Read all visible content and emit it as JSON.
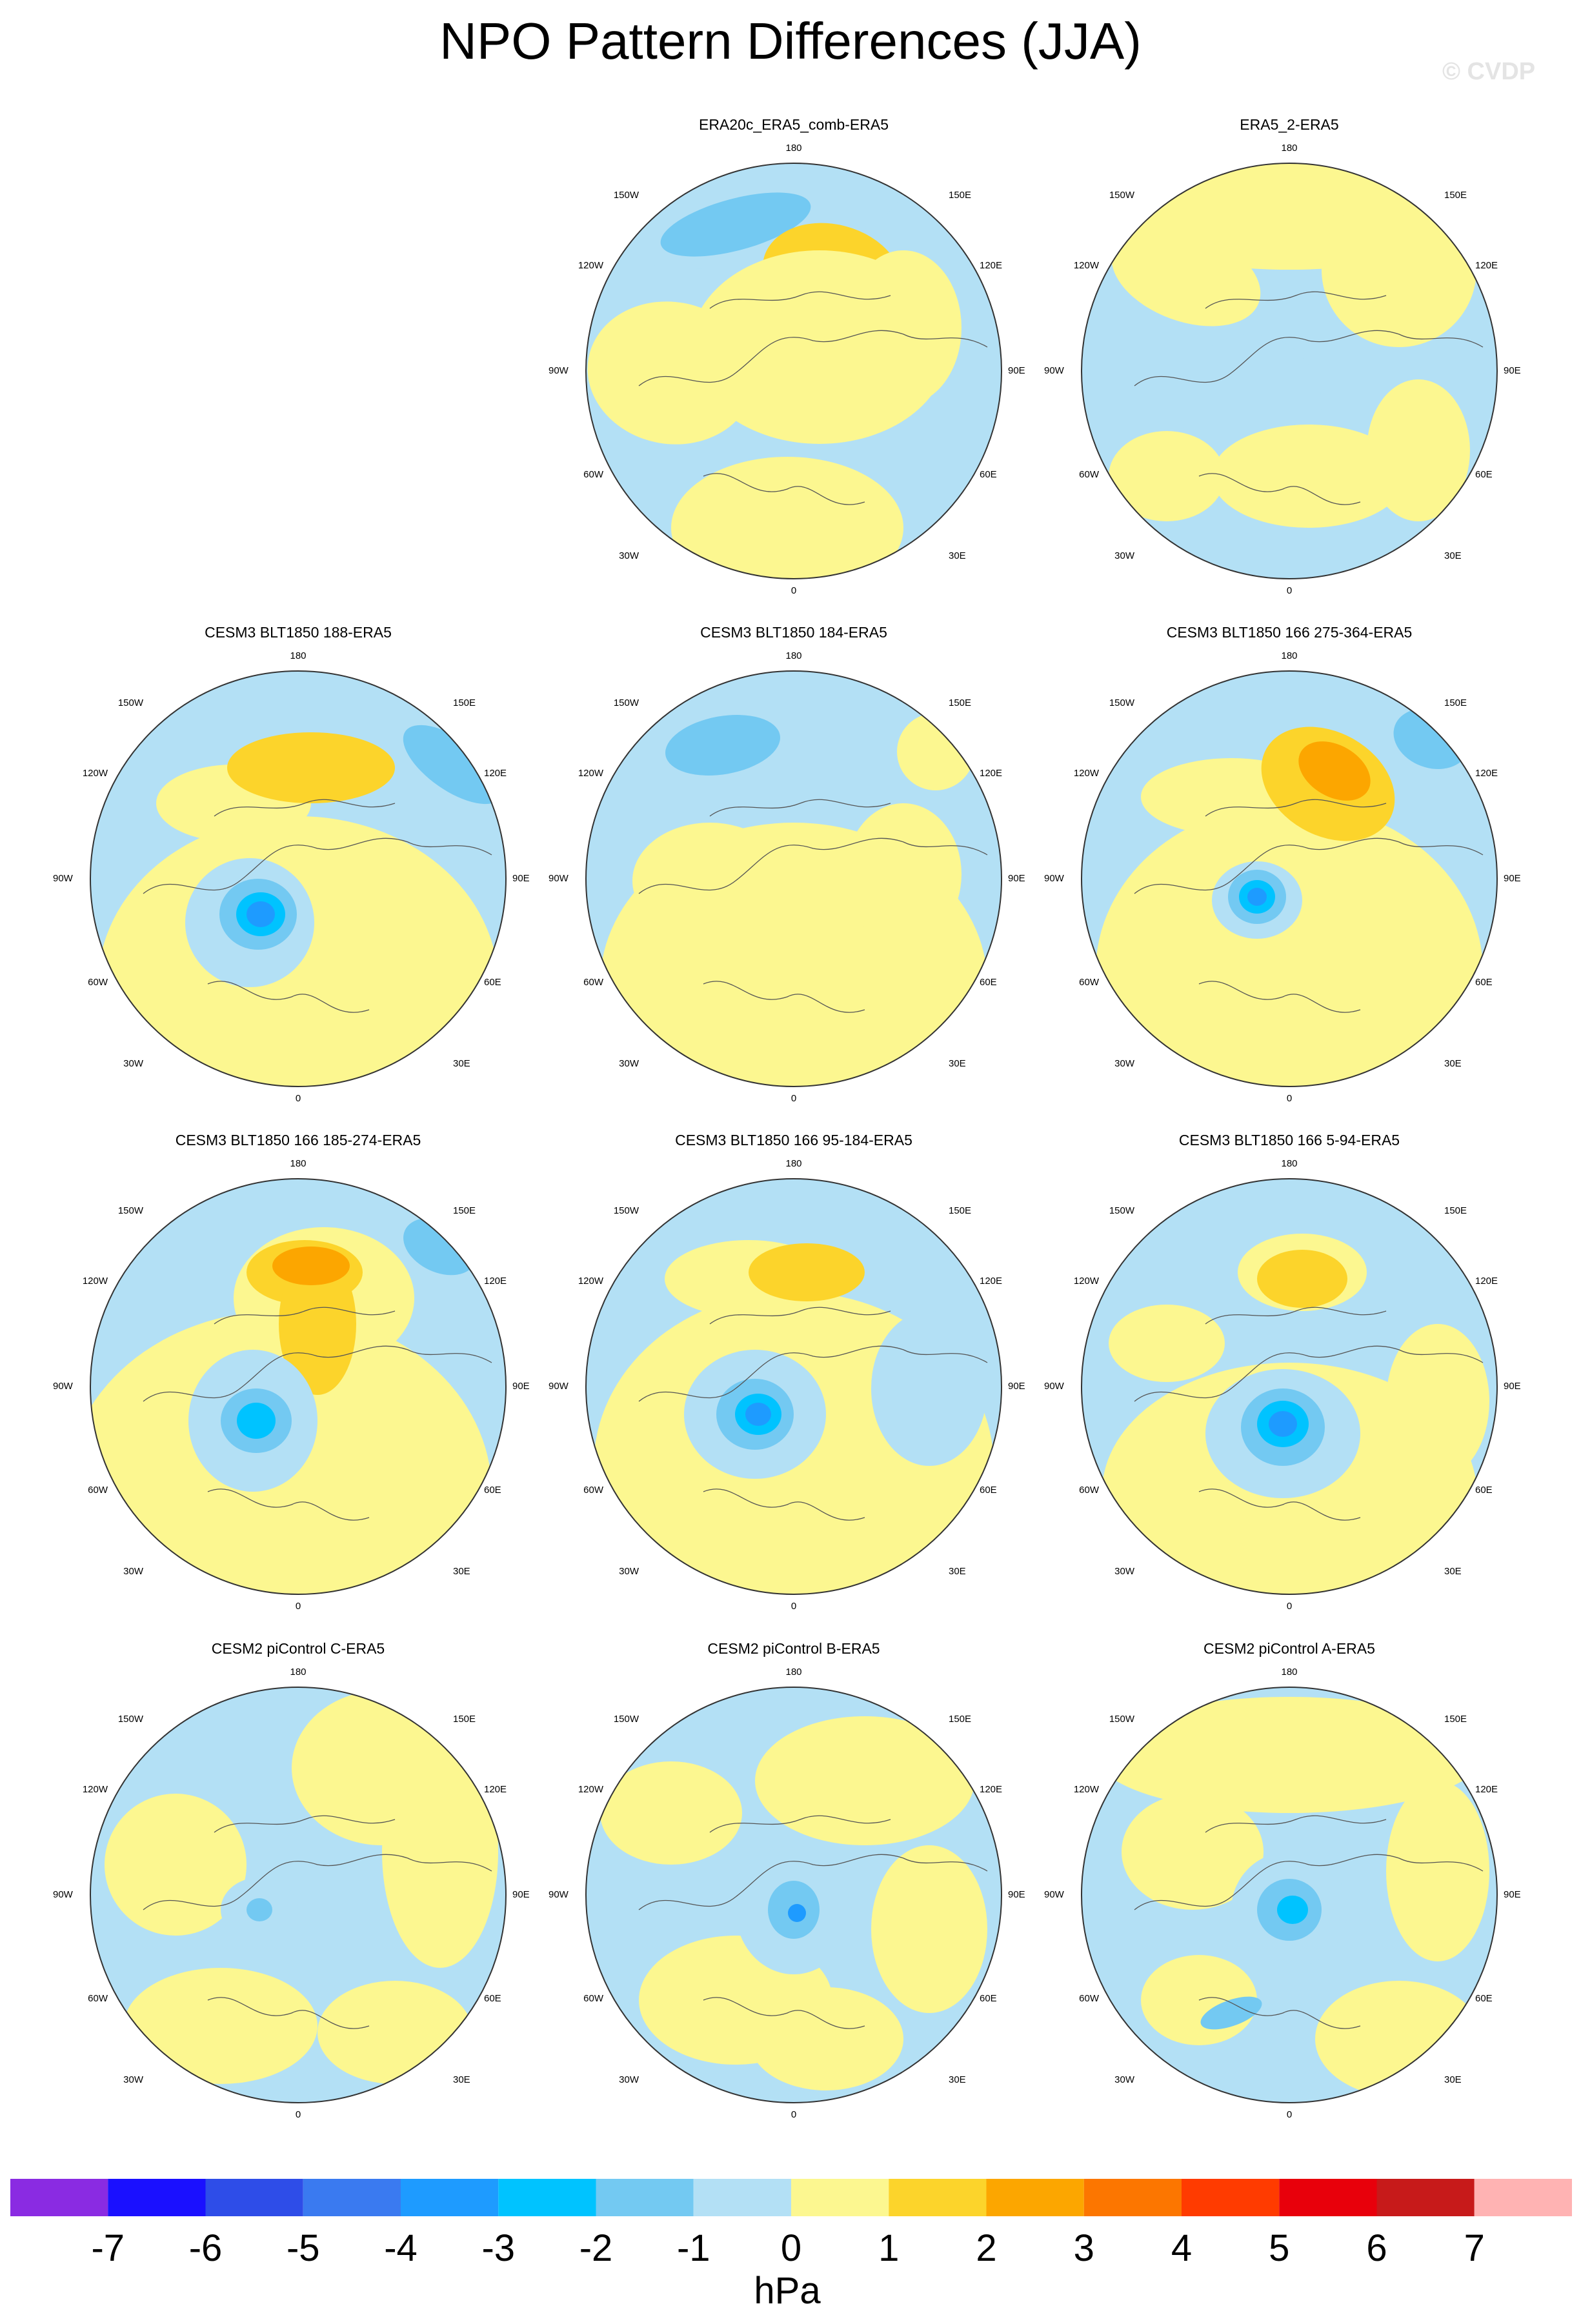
{
  "title": "NPO Pattern Differences (JJA)",
  "watermark": "© CVDP",
  "units": "hPa",
  "colorbar": {
    "labels": [
      "-7",
      "-6",
      "-5",
      "-4",
      "-3",
      "-2",
      "-1",
      "0",
      "1",
      "2",
      "3",
      "4",
      "5",
      "6",
      "7"
    ],
    "colors": [
      "#8a2be2",
      "#1a10ff",
      "#2e4de8",
      "#3a7af0",
      "#1e9bff",
      "#00c3ff",
      "#73c9f2",
      "#b3e0f5",
      "#fcf790",
      "#fcd42b",
      "#fca600",
      "#fc7600",
      "#ff3b00",
      "#e8000b",
      "#c71a1a",
      "#ffb3b3"
    ]
  },
  "map_labels": {
    "top": "180",
    "bottom": "0",
    "left": "90W",
    "right": "90E",
    "upper_left_1": "150W",
    "upper_left_2": "120W",
    "upper_right_1": "150E",
    "upper_right_2": "120E",
    "lower_left_1": "60W",
    "lower_left_2": "30W",
    "lower_right_1": "60E",
    "lower_right_2": "30E"
  },
  "panels": [
    {
      "title": "ERA20c_ERA5_comb-ERA5",
      "min_hpa": -1.5,
      "max_hpa": 1.5
    },
    {
      "title": "ERA5_2-ERA5",
      "min_hpa": -1,
      "max_hpa": 1
    },
    {
      "title": "CESM3 BLT1850 188-ERA5",
      "min_hpa": -4,
      "max_hpa": 1.5
    },
    {
      "title": "CESM3 BLT1850 184-ERA5",
      "min_hpa": -1.5,
      "max_hpa": 1
    },
    {
      "title": "CESM3 BLT1850 166 275-364-ERA5",
      "min_hpa": -3.5,
      "max_hpa": 2.5
    },
    {
      "title": "CESM3 BLT1850 166 185-274-ERA5",
      "min_hpa": -3,
      "max_hpa": 2.5
    },
    {
      "title": "CESM3 BLT1850 166 95-184-ERA5",
      "min_hpa": -3.5,
      "max_hpa": 1.5
    },
    {
      "title": "CESM3 BLT1850 166 5-94-ERA5",
      "min_hpa": -3.5,
      "max_hpa": 1.5
    },
    {
      "title": "CESM2 piControl C-ERA5",
      "min_hpa": -1.5,
      "max_hpa": 1
    },
    {
      "title": "CESM2 piControl B-ERA5",
      "min_hpa": -2.5,
      "max_hpa": 1
    },
    {
      "title": "CESM2 piControl A-ERA5",
      "min_hpa": -3,
      "max_hpa": 1
    }
  ]
}
